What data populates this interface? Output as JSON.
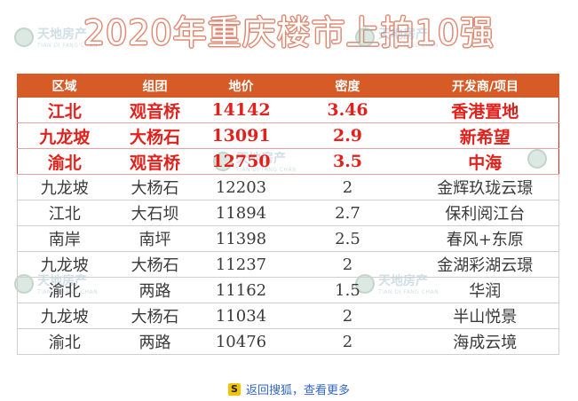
{
  "title": "2020年重庆楼市上拍10强",
  "watermark": {
    "brand": "天地房产",
    "sub": "TIAN DI FANG CHAN"
  },
  "footer": {
    "icon_text": "S",
    "link_text": "返回搜狐，查看更多"
  },
  "chart_data": {
    "type": "table",
    "title": "2020年重庆楼市上拍10强",
    "columns": [
      "区域",
      "组团",
      "地价",
      "密度",
      "开发商/项目"
    ],
    "rows": [
      {
        "region": "江北",
        "cluster": "观音桥",
        "price": "14142",
        "density": "3.46",
        "developer": "香港置地",
        "highlight": true
      },
      {
        "region": "九龙坡",
        "cluster": "大杨石",
        "price": "13091",
        "density": "2.9",
        "developer": "新希望",
        "highlight": true
      },
      {
        "region": "渝北",
        "cluster": "观音桥",
        "price": "12750",
        "density": "3.5",
        "developer": "中海",
        "highlight": true
      },
      {
        "region": "九龙坡",
        "cluster": "大杨石",
        "price": "12203",
        "density": "2",
        "developer": "金辉玖珑云璟",
        "highlight": false
      },
      {
        "region": "江北",
        "cluster": "大石坝",
        "price": "11894",
        "density": "2.7",
        "developer": "保利阅江台",
        "highlight": false
      },
      {
        "region": "南岸",
        "cluster": "南坪",
        "price": "11398",
        "density": "2.5",
        "developer": "春风+东原",
        "highlight": false
      },
      {
        "region": "九龙坡",
        "cluster": "大杨石",
        "price": "11237",
        "density": "2",
        "developer": "金湖彩湖云璟",
        "highlight": false
      },
      {
        "region": "渝北",
        "cluster": "两路",
        "price": "11162",
        "density": "1.5",
        "developer": "华润",
        "highlight": false
      },
      {
        "region": "九龙坡",
        "cluster": "大杨石",
        "price": "11034",
        "density": "2",
        "developer": "半山悦景",
        "highlight": false
      },
      {
        "region": "渝北",
        "cluster": "两路",
        "price": "10476",
        "density": "2",
        "developer": "海成云境",
        "highlight": false
      }
    ],
    "colors": {
      "header_bg": "#d75b26",
      "highlight_text": "#e3211c",
      "normal_text": "#3a3a3a",
      "title_outline": "#e08a73"
    }
  }
}
